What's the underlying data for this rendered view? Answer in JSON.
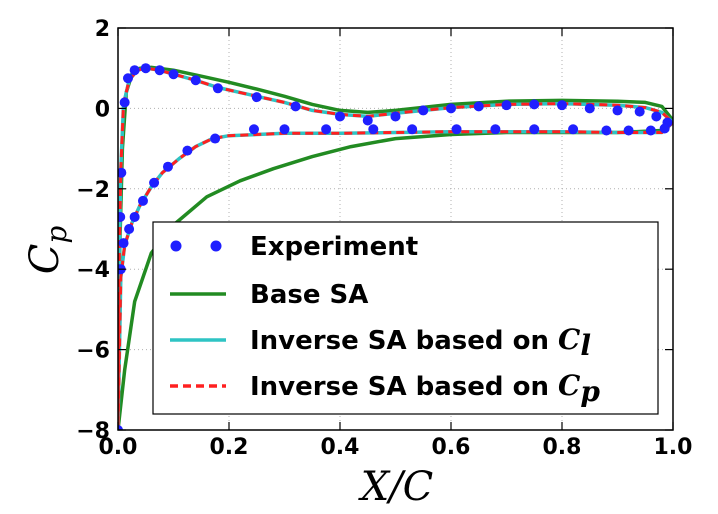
{
  "chart_data": {
    "type": "line",
    "xlabel": "X/C",
    "ylabel": "C_p",
    "xlim": [
      0.0,
      1.0
    ],
    "ylim": [
      -8,
      2
    ],
    "x_ticks": [
      "0.0",
      "0.2",
      "0.4",
      "0.6",
      "0.8",
      "1.0"
    ],
    "y_ticks": [
      "2",
      "0",
      "−2",
      "−4",
      "−6",
      "−8"
    ],
    "grid": true,
    "y_inverted": true,
    "legend_position": "lower-center",
    "series": [
      {
        "name": "Experiment",
        "style": "dots",
        "color": "#1f1fff",
        "points": [
          [
            0.0,
            -8.0
          ],
          [
            0.002,
            -4.0
          ],
          [
            0.004,
            -2.7
          ],
          [
            0.006,
            -1.6
          ],
          [
            0.012,
            0.15
          ],
          [
            0.018,
            0.75
          ],
          [
            0.03,
            0.95
          ],
          [
            0.05,
            1.0
          ],
          [
            0.075,
            0.95
          ],
          [
            0.1,
            0.85
          ],
          [
            0.14,
            0.7
          ],
          [
            0.18,
            0.5
          ],
          [
            0.25,
            0.28
          ],
          [
            0.32,
            0.05
          ],
          [
            0.4,
            -0.2
          ],
          [
            0.45,
            -0.3
          ],
          [
            0.5,
            -0.2
          ],
          [
            0.55,
            -0.05
          ],
          [
            0.6,
            0.0
          ],
          [
            0.65,
            0.05
          ],
          [
            0.7,
            0.08
          ],
          [
            0.75,
            0.1
          ],
          [
            0.8,
            0.08
          ],
          [
            0.85,
            0.0
          ],
          [
            0.9,
            -0.05
          ],
          [
            0.94,
            -0.08
          ],
          [
            0.97,
            -0.2
          ],
          [
            0.99,
            -0.35
          ],
          [
            0.985,
            -0.5
          ],
          [
            0.96,
            -0.55
          ],
          [
            0.92,
            -0.55
          ],
          [
            0.88,
            -0.55
          ],
          [
            0.82,
            -0.52
          ],
          [
            0.75,
            -0.52
          ],
          [
            0.68,
            -0.52
          ],
          [
            0.61,
            -0.52
          ],
          [
            0.53,
            -0.52
          ],
          [
            0.46,
            -0.52
          ],
          [
            0.375,
            -0.52
          ],
          [
            0.3,
            -0.52
          ],
          [
            0.245,
            -0.52
          ],
          [
            0.175,
            -0.75
          ],
          [
            0.125,
            -1.05
          ],
          [
            0.09,
            -1.45
          ],
          [
            0.065,
            -1.85
          ],
          [
            0.045,
            -2.3
          ],
          [
            0.03,
            -2.7
          ],
          [
            0.02,
            -3.0
          ],
          [
            0.01,
            -3.35
          ],
          [
            0.005,
            -4.0
          ]
        ]
      },
      {
        "name": "Base SA",
        "style": "solid",
        "color": "#228b22",
        "points": [
          [
            0.0,
            -8.0
          ],
          [
            0.003,
            -3.5
          ],
          [
            0.008,
            -1.0
          ],
          [
            0.015,
            0.4
          ],
          [
            0.025,
            0.85
          ],
          [
            0.04,
            1.0
          ],
          [
            0.06,
            1.02
          ],
          [
            0.1,
            0.95
          ],
          [
            0.15,
            0.8
          ],
          [
            0.2,
            0.65
          ],
          [
            0.25,
            0.48
          ],
          [
            0.3,
            0.3
          ],
          [
            0.35,
            0.1
          ],
          [
            0.4,
            -0.05
          ],
          [
            0.45,
            -0.1
          ],
          [
            0.5,
            -0.05
          ],
          [
            0.6,
            0.1
          ],
          [
            0.7,
            0.18
          ],
          [
            0.8,
            0.2
          ],
          [
            0.9,
            0.18
          ],
          [
            0.95,
            0.15
          ],
          [
            0.98,
            0.05
          ],
          [
            1.0,
            -0.3
          ],
          [
            0.98,
            -0.55
          ],
          [
            0.9,
            -0.6
          ],
          [
            0.8,
            -0.6
          ],
          [
            0.7,
            -0.6
          ],
          [
            0.6,
            -0.65
          ],
          [
            0.5,
            -0.75
          ],
          [
            0.42,
            -0.95
          ],
          [
            0.35,
            -1.2
          ],
          [
            0.28,
            -1.5
          ],
          [
            0.22,
            -1.8
          ],
          [
            0.16,
            -2.2
          ],
          [
            0.1,
            -2.9
          ],
          [
            0.06,
            -3.6
          ],
          [
            0.03,
            -4.8
          ],
          [
            0.012,
            -6.5
          ],
          [
            0.0,
            -8.0
          ]
        ]
      },
      {
        "name": "Inverse SA based on C_l",
        "style": "solid",
        "color": "#2ec4c4",
        "points": [
          [
            0.0,
            -8.0
          ],
          [
            0.002,
            -4.0
          ],
          [
            0.005,
            -1.5
          ],
          [
            0.01,
            0.1
          ],
          [
            0.02,
            0.7
          ],
          [
            0.035,
            0.95
          ],
          [
            0.05,
            1.0
          ],
          [
            0.075,
            0.95
          ],
          [
            0.1,
            0.85
          ],
          [
            0.14,
            0.7
          ],
          [
            0.18,
            0.52
          ],
          [
            0.25,
            0.3
          ],
          [
            0.3,
            0.15
          ],
          [
            0.35,
            -0.05
          ],
          [
            0.4,
            -0.15
          ],
          [
            0.45,
            -0.2
          ],
          [
            0.5,
            -0.12
          ],
          [
            0.6,
            0.02
          ],
          [
            0.7,
            0.1
          ],
          [
            0.8,
            0.12
          ],
          [
            0.9,
            0.08
          ],
          [
            0.95,
            0.02
          ],
          [
            0.98,
            -0.1
          ],
          [
            1.0,
            -0.35
          ],
          [
            0.98,
            -0.6
          ],
          [
            0.9,
            -0.6
          ],
          [
            0.8,
            -0.58
          ],
          [
            0.7,
            -0.58
          ],
          [
            0.6,
            -0.58
          ],
          [
            0.5,
            -0.6
          ],
          [
            0.4,
            -0.62
          ],
          [
            0.3,
            -0.62
          ],
          [
            0.2,
            -0.68
          ],
          [
            0.17,
            -0.75
          ],
          [
            0.14,
            -0.95
          ],
          [
            0.11,
            -1.25
          ],
          [
            0.08,
            -1.6
          ],
          [
            0.06,
            -1.95
          ],
          [
            0.04,
            -2.4
          ],
          [
            0.025,
            -2.85
          ],
          [
            0.012,
            -3.4
          ],
          [
            0.005,
            -4.2
          ],
          [
            0.0,
            -8.0
          ]
        ]
      },
      {
        "name": "Inverse SA based on C_p",
        "style": "dashed",
        "color": "#ff2020",
        "points": [
          [
            0.0,
            -8.0
          ],
          [
            0.002,
            -4.0
          ],
          [
            0.005,
            -1.5
          ],
          [
            0.01,
            0.1
          ],
          [
            0.02,
            0.7
          ],
          [
            0.035,
            0.95
          ],
          [
            0.05,
            1.0
          ],
          [
            0.075,
            0.95
          ],
          [
            0.1,
            0.85
          ],
          [
            0.14,
            0.7
          ],
          [
            0.18,
            0.52
          ],
          [
            0.25,
            0.3
          ],
          [
            0.3,
            0.15
          ],
          [
            0.35,
            -0.05
          ],
          [
            0.4,
            -0.15
          ],
          [
            0.45,
            -0.2
          ],
          [
            0.5,
            -0.12
          ],
          [
            0.6,
            0.02
          ],
          [
            0.7,
            0.1
          ],
          [
            0.8,
            0.12
          ],
          [
            0.9,
            0.08
          ],
          [
            0.95,
            0.02
          ],
          [
            0.98,
            -0.1
          ],
          [
            1.0,
            -0.35
          ],
          [
            0.98,
            -0.6
          ],
          [
            0.9,
            -0.6
          ],
          [
            0.8,
            -0.58
          ],
          [
            0.7,
            -0.58
          ],
          [
            0.6,
            -0.58
          ],
          [
            0.5,
            -0.6
          ],
          [
            0.4,
            -0.62
          ],
          [
            0.3,
            -0.62
          ],
          [
            0.2,
            -0.68
          ],
          [
            0.17,
            -0.75
          ],
          [
            0.14,
            -0.95
          ],
          [
            0.11,
            -1.25
          ],
          [
            0.08,
            -1.6
          ],
          [
            0.06,
            -1.95
          ],
          [
            0.04,
            -2.4
          ],
          [
            0.025,
            -2.85
          ],
          [
            0.012,
            -3.4
          ],
          [
            0.005,
            -4.2
          ],
          [
            0.0,
            -8.0
          ]
        ]
      }
    ],
    "legend": [
      {
        "label": "Experiment",
        "math": ""
      },
      {
        "label": "Base SA",
        "math": ""
      },
      {
        "label": "Inverse SA based on ",
        "math": "C_l"
      },
      {
        "label": "Inverse SA based on ",
        "math": "C_p"
      }
    ]
  }
}
